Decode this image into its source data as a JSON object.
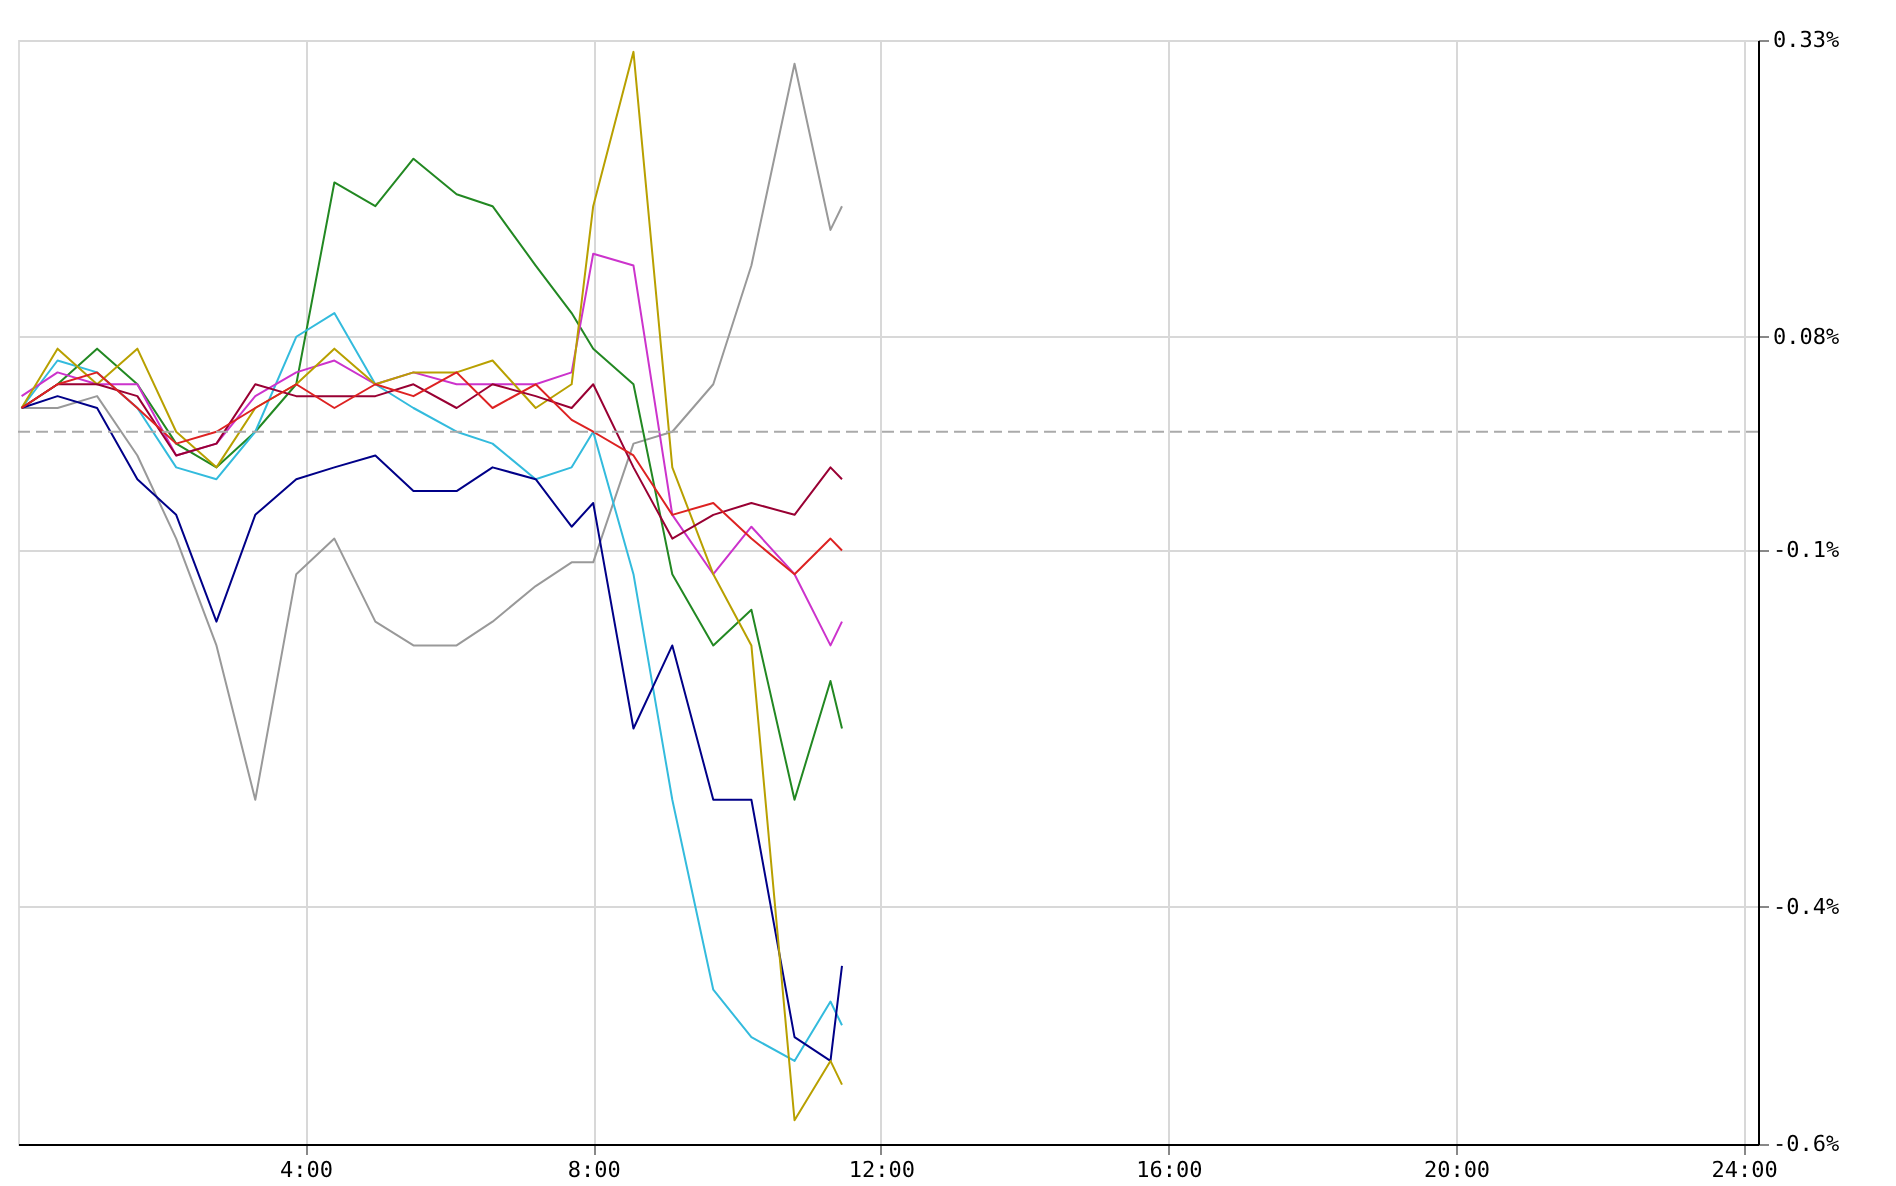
{
  "chart_data": {
    "type": "line",
    "x": [
      0.05,
      0.55,
      1.1,
      1.66,
      2.2,
      2.76,
      3.3,
      3.87,
      4.4,
      4.97,
      5.5,
      6.1,
      6.6,
      7.2,
      7.7,
      8.0,
      8.56,
      9.1,
      9.67,
      10.2,
      10.8,
      11.3,
      11.46
    ],
    "xlim": [
      0,
      24.2
    ],
    "xticks": [
      {
        "value": 4,
        "label": "4:00"
      },
      {
        "value": 8,
        "label": "8:00"
      },
      {
        "value": 12,
        "label": "12:00"
      },
      {
        "value": 16,
        "label": "16:00"
      },
      {
        "value": 20,
        "label": "20:00"
      },
      {
        "value": 24,
        "label": "24:00"
      }
    ],
    "ylim": [
      -0.6,
      0.33
    ],
    "yticks": [
      {
        "value": 0.33,
        "label": "0.33%"
      },
      {
        "value": 0.08,
        "label": "0.08%"
      },
      {
        "value": -0.1,
        "label": "-0.1%"
      },
      {
        "value": -0.4,
        "label": "-0.4%"
      },
      {
        "value": -0.6,
        "label": "-0.6%"
      }
    ],
    "grid": true,
    "legend": false,
    "line_style": "solid",
    "marker": "none",
    "ref_lines": [
      {
        "axis": "y",
        "value": 0,
        "color": "#aaaaaa",
        "line_style": "dashed"
      }
    ],
    "series": [
      {
        "color": "#999999",
        "values": [
          0.02,
          0.02,
          0.03,
          -0.02,
          -0.09,
          -0.18,
          -0.31,
          -0.12,
          -0.09,
          -0.16,
          -0.18,
          -0.18,
          -0.16,
          -0.13,
          -0.11,
          -0.11,
          -0.01,
          0.0,
          0.04,
          0.14,
          0.31,
          0.17,
          0.19
        ]
      },
      {
        "color": "#228822",
        "values": [
          0.02,
          0.04,
          0.07,
          0.04,
          -0.01,
          -0.03,
          0.0,
          0.04,
          0.21,
          0.19,
          0.23,
          0.2,
          0.19,
          0.14,
          0.1,
          0.07,
          0.04,
          -0.12,
          -0.18,
          -0.15,
          -0.31,
          -0.21,
          -0.25
        ]
      },
      {
        "color": "#33bbdd",
        "values": [
          0.02,
          0.06,
          0.05,
          0.02,
          -0.03,
          -0.04,
          0.0,
          0.08,
          0.1,
          0.04,
          0.02,
          0.0,
          -0.01,
          -0.04,
          -0.03,
          0.0,
          -0.12,
          -0.31,
          -0.47,
          -0.51,
          -0.53,
          -0.48,
          -0.5
        ]
      },
      {
        "color": "#000088",
        "values": [
          0.02,
          0.03,
          0.02,
          -0.04,
          -0.07,
          -0.16,
          -0.07,
          -0.04,
          -0.03,
          -0.02,
          -0.05,
          -0.05,
          -0.03,
          -0.04,
          -0.08,
          -0.06,
          -0.25,
          -0.18,
          -0.31,
          -0.31,
          -0.51,
          -0.53,
          -0.45
        ]
      },
      {
        "color": "#cc33cc",
        "values": [
          0.03,
          0.05,
          0.04,
          0.04,
          -0.02,
          -0.01,
          0.03,
          0.05,
          0.06,
          0.04,
          0.05,
          0.04,
          0.04,
          0.04,
          0.05,
          0.15,
          0.14,
          -0.07,
          -0.12,
          -0.08,
          -0.12,
          -0.18,
          -0.16
        ]
      },
      {
        "color": "#b8a000",
        "values": [
          0.02,
          0.07,
          0.04,
          0.07,
          0.0,
          -0.03,
          0.02,
          0.04,
          0.07,
          0.04,
          0.05,
          0.05,
          0.06,
          0.02,
          0.04,
          0.19,
          0.32,
          -0.03,
          -0.12,
          -0.18,
          -0.58,
          -0.53,
          -0.55
        ]
      },
      {
        "color": "#990033",
        "values": [
          0.02,
          0.04,
          0.04,
          0.03,
          -0.02,
          -0.01,
          0.04,
          0.03,
          0.03,
          0.03,
          0.04,
          0.02,
          0.04,
          0.03,
          0.02,
          0.04,
          -0.03,
          -0.09,
          -0.07,
          -0.06,
          -0.07,
          -0.03,
          -0.04
        ]
      },
      {
        "color": "#dd2222",
        "values": [
          0.02,
          0.04,
          0.05,
          0.02,
          -0.01,
          0.0,
          0.02,
          0.04,
          0.02,
          0.04,
          0.03,
          0.05,
          0.02,
          0.04,
          0.01,
          0.0,
          -0.02,
          -0.07,
          -0.06,
          -0.09,
          -0.12,
          -0.09,
          -0.1
        ]
      }
    ]
  }
}
